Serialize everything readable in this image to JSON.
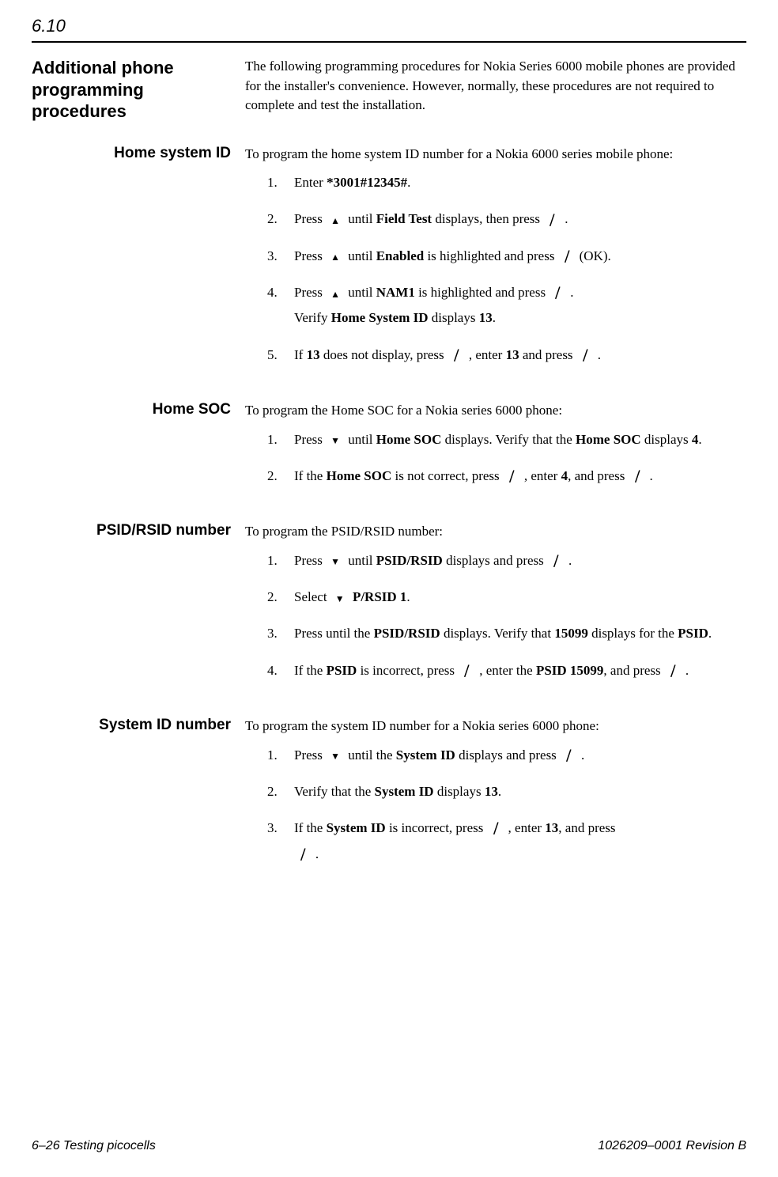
{
  "section_number": "6.10",
  "main_heading": "Additional phone programming procedures",
  "intro": "The following programming procedures for Nokia Series 6000 mobile phones are provided for the installer's convenience. However, normally, these procedures are not required to complete and test the installation.",
  "sections": {
    "home_system_id": {
      "heading": "Home system ID",
      "intro": "To program the home system ID number for a Nokia 6000 series mobile phone:",
      "steps": {
        "s1_a": "Enter ",
        "s1_b": "*3001#12345#",
        "s1_c": ".",
        "s2_a": "Press ",
        "s2_b": " until ",
        "s2_c": "Field Test",
        "s2_d": " displays, then press ",
        "s2_e": " .",
        "s3_a": "Press ",
        "s3_b": " until ",
        "s3_c": "Enabled",
        "s3_d": " is highlighted and press ",
        "s3_e": "  (OK).",
        "s4_a": "Press ",
        "s4_b": " until ",
        "s4_c": "NAM1",
        "s4_d": " is highlighted and press ",
        "s4_e": " .",
        "s4_f": "Verify ",
        "s4_g": "Home System ID",
        "s4_h": " displays ",
        "s4_i": "13",
        "s4_j": ".",
        "s5_a": "If ",
        "s5_b": "13",
        "s5_c": " does not display, press ",
        "s5_d": " , enter ",
        "s5_e": "13",
        "s5_f": " and press  ",
        "s5_g": " ."
      }
    },
    "home_soc": {
      "heading": "Home SOC",
      "intro": "To program the Home SOC for a Nokia series 6000 phone:",
      "steps": {
        "s1_a": "Press  ",
        "s1_b": " until ",
        "s1_c": "Home SOC",
        "s1_d": " displays. Verify that the ",
        "s1_e": "Home SOC",
        "s1_f": " displays ",
        "s1_g": "4",
        "s1_h": ".",
        "s2_a": "If the ",
        "s2_b": "Home SOC",
        "s2_c": " is not correct, press ",
        "s2_d": " , enter ",
        "s2_e": "4",
        "s2_f": ", and press ",
        "s2_g": "  ."
      }
    },
    "psid": {
      "heading": "PSID/RSID number",
      "intro": "To program the PSID/RSID number:",
      "steps": {
        "s1_a": "Press  ",
        "s1_b": " until ",
        "s1_c": "PSID/RSID",
        "s1_d": " displays and press ",
        "s1_e": " .",
        "s2_a": "Select ",
        "s2_b": " P/RSID 1",
        "s2_c": ".",
        "s3_a": "Press  until the ",
        "s3_b": "PSID/RSID",
        "s3_c": " displays. Verify that ",
        "s3_d": "15099",
        "s3_e": " displays for the ",
        "s3_f": "PSID",
        "s3_g": ".",
        "s4_a": "If the ",
        "s4_b": "PSID",
        "s4_c": " is incorrect, press ",
        "s4_d": " , enter the ",
        "s4_e": "PSID 15099",
        "s4_f": ", and press ",
        "s4_g": "  ."
      }
    },
    "system_id": {
      "heading": "System ID number",
      "intro": "To program the system ID number for a Nokia series 6000 phone:",
      "steps": {
        "s1_a": "Press  ",
        "s1_b": " until the ",
        "s1_c": "System ID",
        "s1_d": " displays and press ",
        "s1_e": " .",
        "s2_a": "Verify that the ",
        "s2_b": "System ID",
        "s2_c": " displays ",
        "s2_d": "13",
        "s2_e": ".",
        "s3_a": "If the ",
        "s3_b": "System ID",
        "s3_c": " is incorrect, press ",
        "s3_d": " , enter ",
        "s3_e": "13",
        "s3_f": ", and press ",
        "s3_g": " ."
      }
    }
  },
  "footer": {
    "left": "6–26  Testing picocells",
    "right": "1026209–0001  Revision B"
  }
}
